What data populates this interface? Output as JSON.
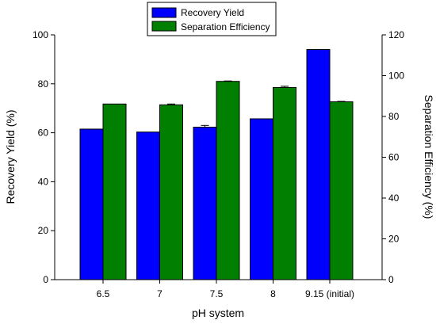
{
  "chart_data": {
    "type": "bar",
    "title": "",
    "xlabel": "pH system",
    "ylabel": "Recovery Yield (%)",
    "y2label": "Separation Efficiency (%)",
    "categories": [
      "6.5",
      "7",
      "7.5",
      "8",
      "9.15 (initial)"
    ],
    "ylim": [
      0,
      100
    ],
    "y2lim": [
      0,
      120
    ],
    "yticks": [
      0,
      20,
      40,
      60,
      80,
      100
    ],
    "y2ticks": [
      0,
      20,
      40,
      60,
      80,
      100,
      120
    ],
    "legend_position": "top-center",
    "grid": false,
    "series": [
      {
        "name": "Recovery Yield",
        "axis": "left",
        "color": "#0000ff",
        "values": [
          61.5,
          60.3,
          62.3,
          65.7,
          94.0
        ],
        "errors": [
          0,
          0,
          0.7,
          0,
          0
        ]
      },
      {
        "name": "Separation Efficiency",
        "axis": "right",
        "color": "#007f00",
        "values": [
          86.1,
          85.7,
          97.2,
          94.2,
          87.2
        ],
        "errors": [
          0,
          0.4,
          0.2,
          0.6,
          0.2
        ]
      }
    ]
  }
}
